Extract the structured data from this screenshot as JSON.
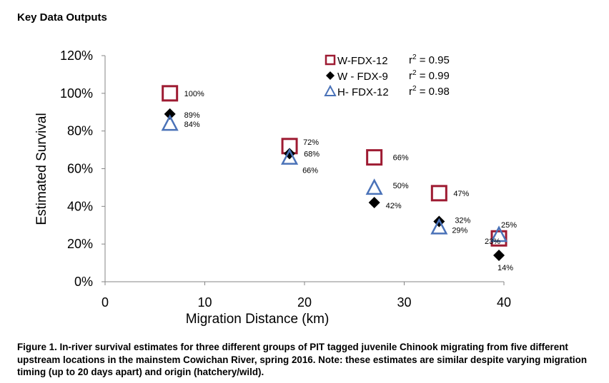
{
  "heading": "Key Data Outputs",
  "caption": "Figure 1.  In-river survival estimates for three different groups of PIT tagged juvenile Chinook migrating from five different upstream locations in the mainstem Cowichan River, spring 2016. Note: these estimates are similar despite varying migration timing (up to 20 days apart) and origin (hatchery/wild).",
  "chart_data": {
    "type": "scatter",
    "title": "",
    "xlabel": "Migration Distance (km)",
    "ylabel": "Estimated Survival",
    "xlim": [
      0,
      40
    ],
    "ylim": [
      0,
      1.2
    ],
    "xticks": [
      0,
      10,
      20,
      30,
      40
    ],
    "xtick_labels": [
      "0",
      "10",
      "20",
      "30",
      "40"
    ],
    "yticks": [
      0,
      0.2,
      0.4,
      0.6,
      0.8,
      1.0,
      1.2
    ],
    "ytick_labels": [
      "0%",
      "20%",
      "40%",
      "60%",
      "80%",
      "100%",
      "120%"
    ],
    "grid": false,
    "legend_position": "top-right",
    "series": [
      {
        "name": "W-FDX-12",
        "r2_label": "r",
        "r2_exp": "2",
        "r2_value": " = 0.95",
        "marker": "square-open",
        "color": "#9e1b32",
        "x": [
          6.5,
          18.5,
          27,
          33.5,
          39.5
        ],
        "y": [
          1.0,
          0.72,
          0.66,
          0.47,
          0.23
        ],
        "labels": [
          "100%",
          "72%",
          "66%",
          "47%",
          "23%"
        ]
      },
      {
        "name": "W - FDX-9",
        "r2_label": "r",
        "r2_exp": "2",
        "r2_value": " = 0.99",
        "marker": "diamond-filled",
        "color": "#000000",
        "x": [
          6.5,
          18.5,
          27,
          33.5,
          39.5
        ],
        "y": [
          0.89,
          0.68,
          0.42,
          0.32,
          0.14
        ],
        "labels": [
          "89%",
          "68%",
          "42%",
          "32%",
          "14%"
        ]
      },
      {
        "name": "H- FDX-12",
        "r2_label": "r",
        "r2_exp": "2",
        "r2_value": " = 0.98",
        "marker": "triangle-open",
        "color": "#4a72b8",
        "x": [
          6.5,
          18.5,
          27,
          33.5,
          39.5
        ],
        "y": [
          0.84,
          0.66,
          0.5,
          0.29,
          0.25
        ],
        "labels": [
          "84%",
          "66%",
          "50%",
          "29%",
          "25%"
        ]
      }
    ]
  }
}
